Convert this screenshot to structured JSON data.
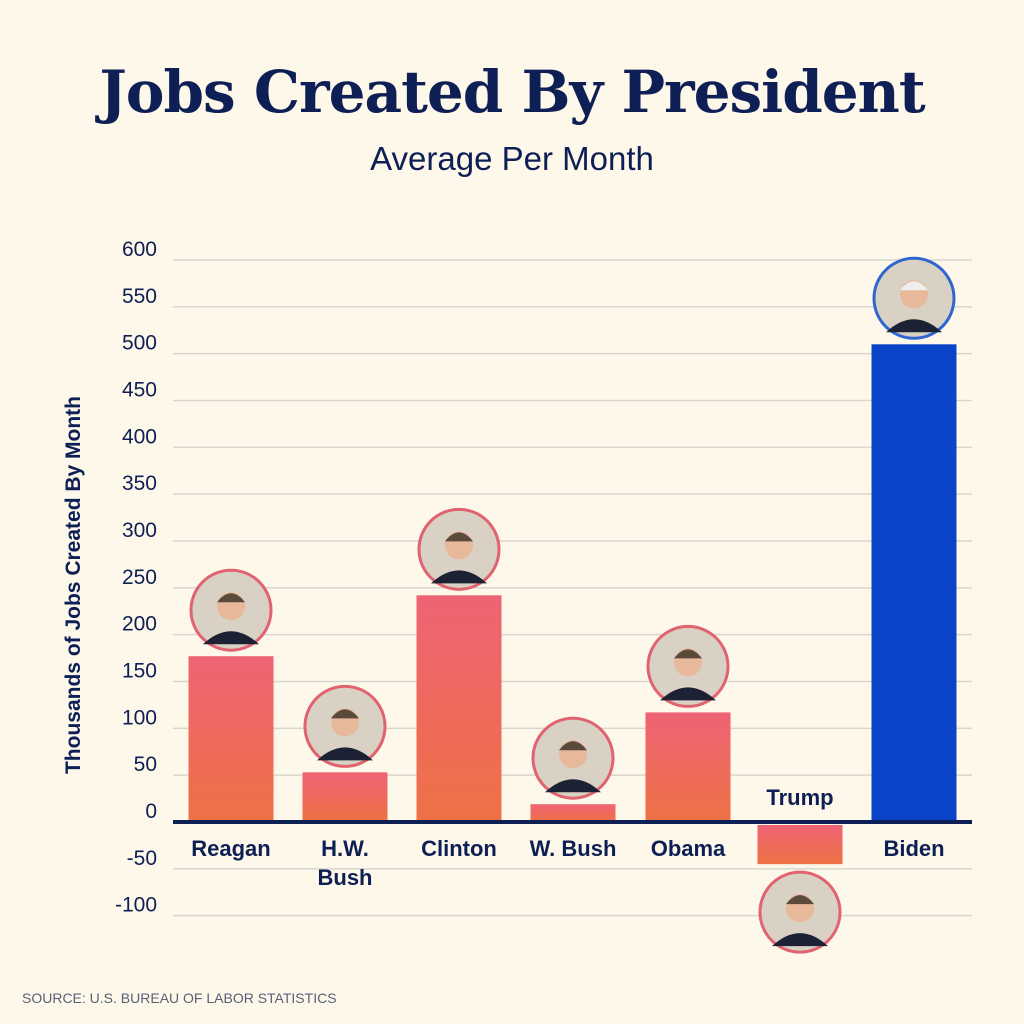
{
  "chart_data": {
    "type": "bar",
    "title": "Jobs Created By President",
    "subtitle": "Average Per Month",
    "ylabel": "Thousands of Jobs Created By Month",
    "xlabel": "",
    "categories": [
      "Reagan",
      "H.W. Bush",
      "Clinton",
      "W. Bush",
      "Obama",
      "Trump",
      "Biden"
    ],
    "values": [
      177,
      53,
      242,
      19,
      117,
      -45,
      510
    ],
    "bar_colors": [
      "#ee6a5c",
      "#ee6a5c",
      "#ee6a5c",
      "#ee6a5c",
      "#ee6a5c",
      "#ee6a5c",
      "#0a44c8"
    ],
    "ylim": [
      -100,
      600
    ],
    "yticks": [
      600,
      550,
      500,
      450,
      400,
      350,
      300,
      250,
      200,
      150,
      100,
      50,
      0,
      -50,
      -100
    ],
    "grid": true,
    "source": "SOURCE: U.S. BUREAU OF LABOR STATISTICS"
  },
  "colors": {
    "navy": "#0e1f55",
    "bar_top": "#ee6374",
    "bar_bottom": "#ee7145",
    "biden": "#0a44c8",
    "grid": "#d8d6cf"
  }
}
